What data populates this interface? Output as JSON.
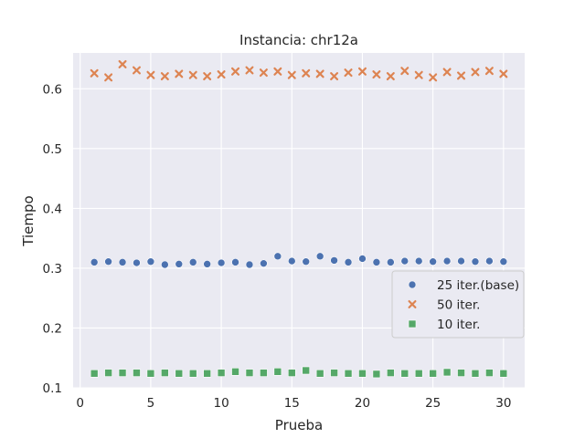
{
  "chart_data": {
    "type": "scatter",
    "title": "Instancia: chr12a",
    "xlabel": "Prueba",
    "ylabel": "Tiempo",
    "xlim": [
      -0.5,
      31.5
    ],
    "ylim": [
      0.1,
      0.66
    ],
    "xticks": [
      0,
      5,
      10,
      15,
      20,
      25,
      30
    ],
    "yticks": [
      0.1,
      0.2,
      0.3,
      0.4,
      0.5,
      0.6
    ],
    "xtick_labels": [
      "0",
      "5",
      "10",
      "15",
      "20",
      "25",
      "30"
    ],
    "ytick_labels": [
      "0.1",
      "0.2",
      "0.3",
      "0.4",
      "0.5",
      "0.6"
    ],
    "grid": true,
    "legend_position": "center-right",
    "x": [
      1,
      2,
      3,
      4,
      5,
      6,
      7,
      8,
      9,
      10,
      11,
      12,
      13,
      14,
      15,
      16,
      17,
      18,
      19,
      20,
      21,
      22,
      23,
      24,
      25,
      26,
      27,
      28,
      29,
      30
    ],
    "series": [
      {
        "name": "25 iter.(base)",
        "marker": "circle",
        "color": "#4c72b0",
        "values": [
          0.31,
          0.311,
          0.31,
          0.309,
          0.311,
          0.306,
          0.307,
          0.31,
          0.307,
          0.309,
          0.31,
          0.306,
          0.308,
          0.32,
          0.312,
          0.311,
          0.32,
          0.313,
          0.31,
          0.316,
          0.31,
          0.31,
          0.312,
          0.312,
          0.311,
          0.312,
          0.312,
          0.311,
          0.312,
          0.311
        ]
      },
      {
        "name": "50 iter.",
        "marker": "x",
        "color": "#dd8452",
        "values": [
          0.626,
          0.619,
          0.641,
          0.631,
          0.623,
          0.621,
          0.625,
          0.623,
          0.621,
          0.624,
          0.629,
          0.631,
          0.627,
          0.629,
          0.623,
          0.626,
          0.625,
          0.621,
          0.627,
          0.629,
          0.624,
          0.621,
          0.63,
          0.623,
          0.619,
          0.628,
          0.622,
          0.628,
          0.63,
          0.625
        ]
      },
      {
        "name": "10 iter.",
        "marker": "square",
        "color": "#55a868",
        "values": [
          0.124,
          0.125,
          0.125,
          0.125,
          0.124,
          0.125,
          0.124,
          0.124,
          0.124,
          0.125,
          0.127,
          0.125,
          0.125,
          0.127,
          0.125,
          0.129,
          0.124,
          0.125,
          0.124,
          0.124,
          0.123,
          0.125,
          0.124,
          0.124,
          0.124,
          0.126,
          0.125,
          0.124,
          0.125,
          0.124
        ]
      }
    ]
  },
  "colors": {
    "plot_background": "#eaeaf2",
    "grid": "#ffffff",
    "legend_border": "#cccccc"
  }
}
